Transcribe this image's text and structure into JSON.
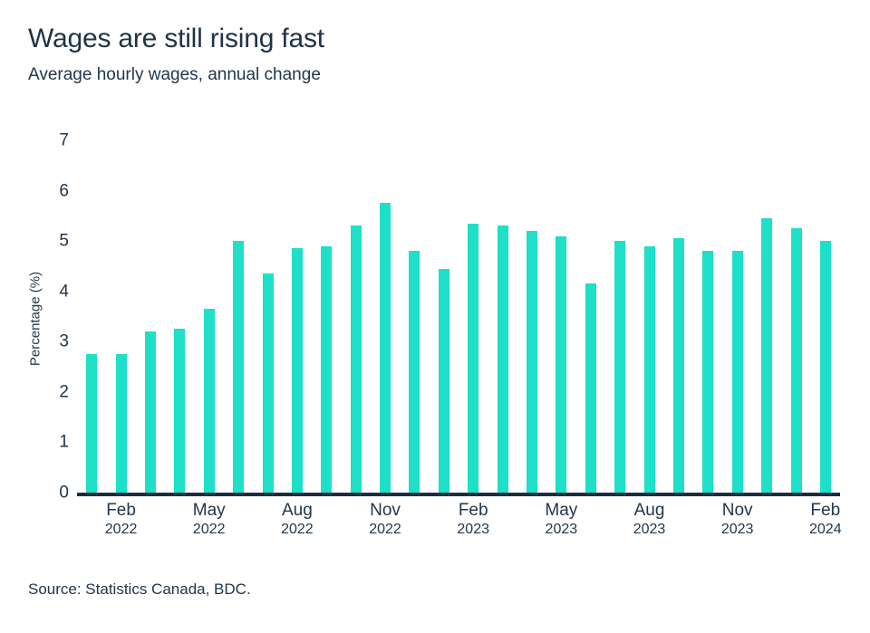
{
  "header": {
    "title": "Wages are still rising fast",
    "subtitle": "Average hourly wages, annual change"
  },
  "footer": {
    "source": "Source: Statistics Canada, BDC."
  },
  "colors": {
    "bar": "#1EDFC7",
    "axis": "#1B2D40",
    "text": "#22364A",
    "background": "#FFFFFF"
  },
  "chart_data": {
    "type": "bar",
    "title": "Wages are still rising fast",
    "subtitle": "Average hourly wages, annual change",
    "xlabel": "",
    "ylabel": "Percentage (%)",
    "ylim": [
      0,
      7
    ],
    "yticks": [
      0,
      1,
      2,
      3,
      4,
      5,
      6,
      7
    ],
    "grid": false,
    "legend": false,
    "categories": [
      "Jan 2022",
      "Feb 2022",
      "Mar 2022",
      "Apr 2022",
      "May 2022",
      "Jun 2022",
      "Jul 2022",
      "Aug 2022",
      "Sep 2022",
      "Oct 2022",
      "Nov 2022",
      "Dec 2022",
      "Jan 2023",
      "Feb 2023",
      "Mar 2023",
      "Apr 2023",
      "May 2023",
      "Jun 2023",
      "Jul 2023",
      "Aug 2023",
      "Sep 2023",
      "Oct 2023",
      "Nov 2023",
      "Dec 2023",
      "Jan 2024",
      "Feb 2024"
    ],
    "values": [
      2.75,
      2.75,
      3.2,
      3.25,
      3.65,
      5.0,
      4.35,
      4.85,
      4.9,
      5.3,
      5.75,
      4.8,
      4.45,
      5.35,
      5.3,
      5.2,
      5.1,
      4.15,
      5.0,
      4.9,
      5.05,
      4.8,
      4.8,
      5.45,
      5.25,
      5.0
    ],
    "x_tick_labels": [
      {
        "index": 1,
        "month": "Feb",
        "year": "2022"
      },
      {
        "index": 4,
        "month": "May",
        "year": "2022"
      },
      {
        "index": 7,
        "month": "Aug",
        "year": "2022"
      },
      {
        "index": 10,
        "month": "Nov",
        "year": "2022"
      },
      {
        "index": 13,
        "month": "Feb",
        "year": "2023"
      },
      {
        "index": 16,
        "month": "May",
        "year": "2023"
      },
      {
        "index": 19,
        "month": "Aug",
        "year": "2023"
      },
      {
        "index": 22,
        "month": "Nov",
        "year": "2023"
      },
      {
        "index": 25,
        "month": "Feb",
        "year": "2024"
      }
    ]
  }
}
